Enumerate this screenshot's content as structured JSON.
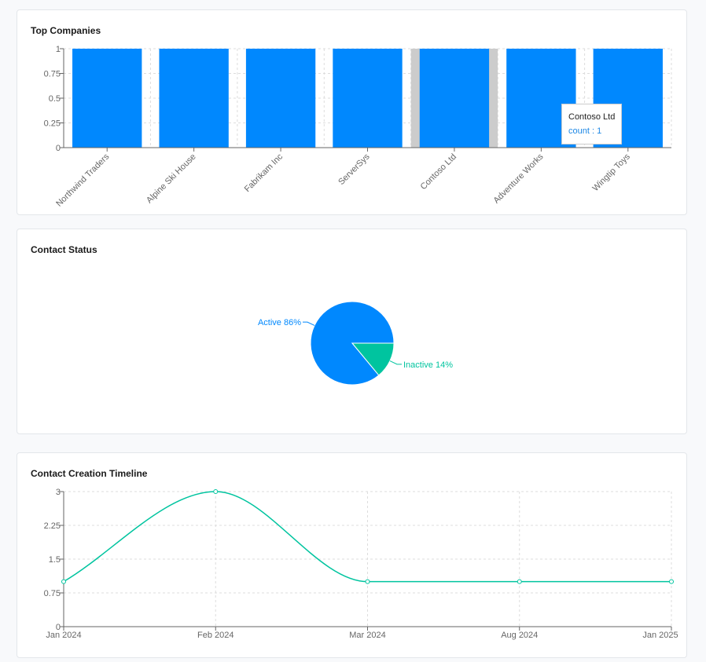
{
  "colors": {
    "bar": "#0088fe",
    "bar_highlight": "#cccccc",
    "pie_active": "#0088fe",
    "pie_inactive": "#00c49f",
    "line": "#00c49f",
    "axis": "#666666",
    "grid": "#dddddd"
  },
  "top_companies": {
    "title": "Top Companies",
    "chart_data": {
      "type": "bar",
      "categories": [
        "Northwind Traders",
        "Alpine Ski House",
        "Fabrikam Inc",
        "ServerSys",
        "Contoso Ltd",
        "Adventure Works",
        "Wingtip Toys"
      ],
      "series": [
        {
          "values": [
            1,
            1,
            1,
            1,
            1,
            1,
            1
          ]
        }
      ],
      "y_ticks": [
        "0",
        "0.25",
        "0.5",
        "0.75",
        "1"
      ],
      "ylim": [
        0,
        1
      ],
      "grid": true,
      "active_category": "Contoso Ltd"
    },
    "tooltip": {
      "label": "Contoso Ltd",
      "value_text": "count : 1"
    }
  },
  "contact_status": {
    "title": "Contact Status",
    "chart_data": {
      "type": "pie",
      "slices": [
        {
          "name": "Active",
          "value": 86,
          "label": "Active 86%"
        },
        {
          "name": "Inactive",
          "value": 14,
          "label": "Inactive 14%"
        }
      ]
    }
  },
  "contact_timeline": {
    "title": "Contact Creation Timeline",
    "chart_data": {
      "type": "line",
      "x": [
        "Jan 2024",
        "Feb 2024",
        "Mar 2024",
        "Aug 2024",
        "Jan 2025"
      ],
      "series": [
        {
          "values": [
            1,
            3,
            1,
            1,
            1
          ]
        }
      ],
      "y_ticks": [
        "0",
        "0.75",
        "1.5",
        "2.25",
        "3"
      ],
      "ylim": [
        0,
        3
      ],
      "grid": true
    }
  }
}
